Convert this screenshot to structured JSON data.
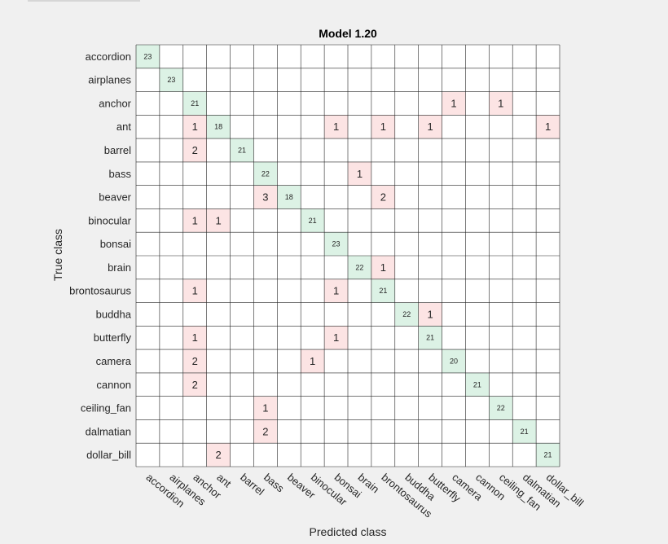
{
  "chart_data": {
    "type": "heatmap",
    "title": "Model 1.20",
    "xlabel": "Predicted class",
    "ylabel": "True class",
    "classes": [
      "accordion",
      "airplanes",
      "anchor",
      "ant",
      "barrel",
      "bass",
      "beaver",
      "binocular",
      "bonsai",
      "brain",
      "brontosaurus",
      "buddha",
      "butterfly",
      "camera",
      "cannon",
      "ceiling_fan",
      "dalmatian",
      "dollar_bill"
    ],
    "matrix": [
      [
        23,
        0,
        0,
        0,
        0,
        0,
        0,
        0,
        0,
        0,
        0,
        0,
        0,
        0,
        0,
        0,
        0,
        0
      ],
      [
        0,
        23,
        0,
        0,
        0,
        0,
        0,
        0,
        0,
        0,
        0,
        0,
        0,
        0,
        0,
        0,
        0,
        0
      ],
      [
        0,
        0,
        21,
        0,
        0,
        0,
        0,
        0,
        0,
        0,
        0,
        0,
        0,
        1,
        0,
        1,
        0,
        0
      ],
      [
        0,
        0,
        1,
        18,
        0,
        0,
        0,
        0,
        1,
        0,
        1,
        0,
        1,
        0,
        0,
        0,
        0,
        1
      ],
      [
        0,
        0,
        2,
        0,
        21,
        0,
        0,
        0,
        0,
        0,
        0,
        0,
        0,
        0,
        0,
        0,
        0,
        0
      ],
      [
        0,
        0,
        0,
        0,
        0,
        22,
        0,
        0,
        0,
        1,
        0,
        0,
        0,
        0,
        0,
        0,
        0,
        0
      ],
      [
        0,
        0,
        0,
        0,
        0,
        3,
        18,
        0,
        0,
        0,
        2,
        0,
        0,
        0,
        0,
        0,
        0,
        0
      ],
      [
        0,
        0,
        1,
        1,
        0,
        0,
        0,
        21,
        0,
        0,
        0,
        0,
        0,
        0,
        0,
        0,
        0,
        0
      ],
      [
        0,
        0,
        0,
        0,
        0,
        0,
        0,
        0,
        23,
        0,
        0,
        0,
        0,
        0,
        0,
        0,
        0,
        0
      ],
      [
        0,
        0,
        0,
        0,
        0,
        0,
        0,
        0,
        0,
        22,
        1,
        0,
        0,
        0,
        0,
        0,
        0,
        0
      ],
      [
        0,
        0,
        1,
        0,
        0,
        0,
        0,
        0,
        1,
        0,
        21,
        0,
        0,
        0,
        0,
        0,
        0,
        0
      ],
      [
        0,
        0,
        0,
        0,
        0,
        0,
        0,
        0,
        0,
        0,
        0,
        22,
        1,
        0,
        0,
        0,
        0,
        0
      ],
      [
        0,
        0,
        1,
        0,
        0,
        0,
        0,
        0,
        1,
        0,
        0,
        0,
        21,
        0,
        0,
        0,
        0,
        0
      ],
      [
        0,
        0,
        2,
        0,
        0,
        0,
        0,
        1,
        0,
        0,
        0,
        0,
        0,
        20,
        0,
        0,
        0,
        0
      ],
      [
        0,
        0,
        2,
        0,
        0,
        0,
        0,
        0,
        0,
        0,
        0,
        0,
        0,
        0,
        21,
        0,
        0,
        0
      ],
      [
        0,
        0,
        0,
        0,
        0,
        1,
        0,
        0,
        0,
        0,
        0,
        0,
        0,
        0,
        0,
        22,
        0,
        0
      ],
      [
        0,
        0,
        0,
        0,
        0,
        2,
        0,
        0,
        0,
        0,
        0,
        0,
        0,
        0,
        0,
        0,
        21,
        0
      ],
      [
        0,
        0,
        0,
        2,
        0,
        0,
        0,
        0,
        0,
        0,
        0,
        0,
        0,
        0,
        0,
        0,
        0,
        21
      ]
    ],
    "colors": {
      "correct": "#dcf2e5",
      "incorrect": "#fce4e4",
      "empty": "#ffffff",
      "grid": "#262626",
      "background": "#f0f0f0"
    }
  }
}
